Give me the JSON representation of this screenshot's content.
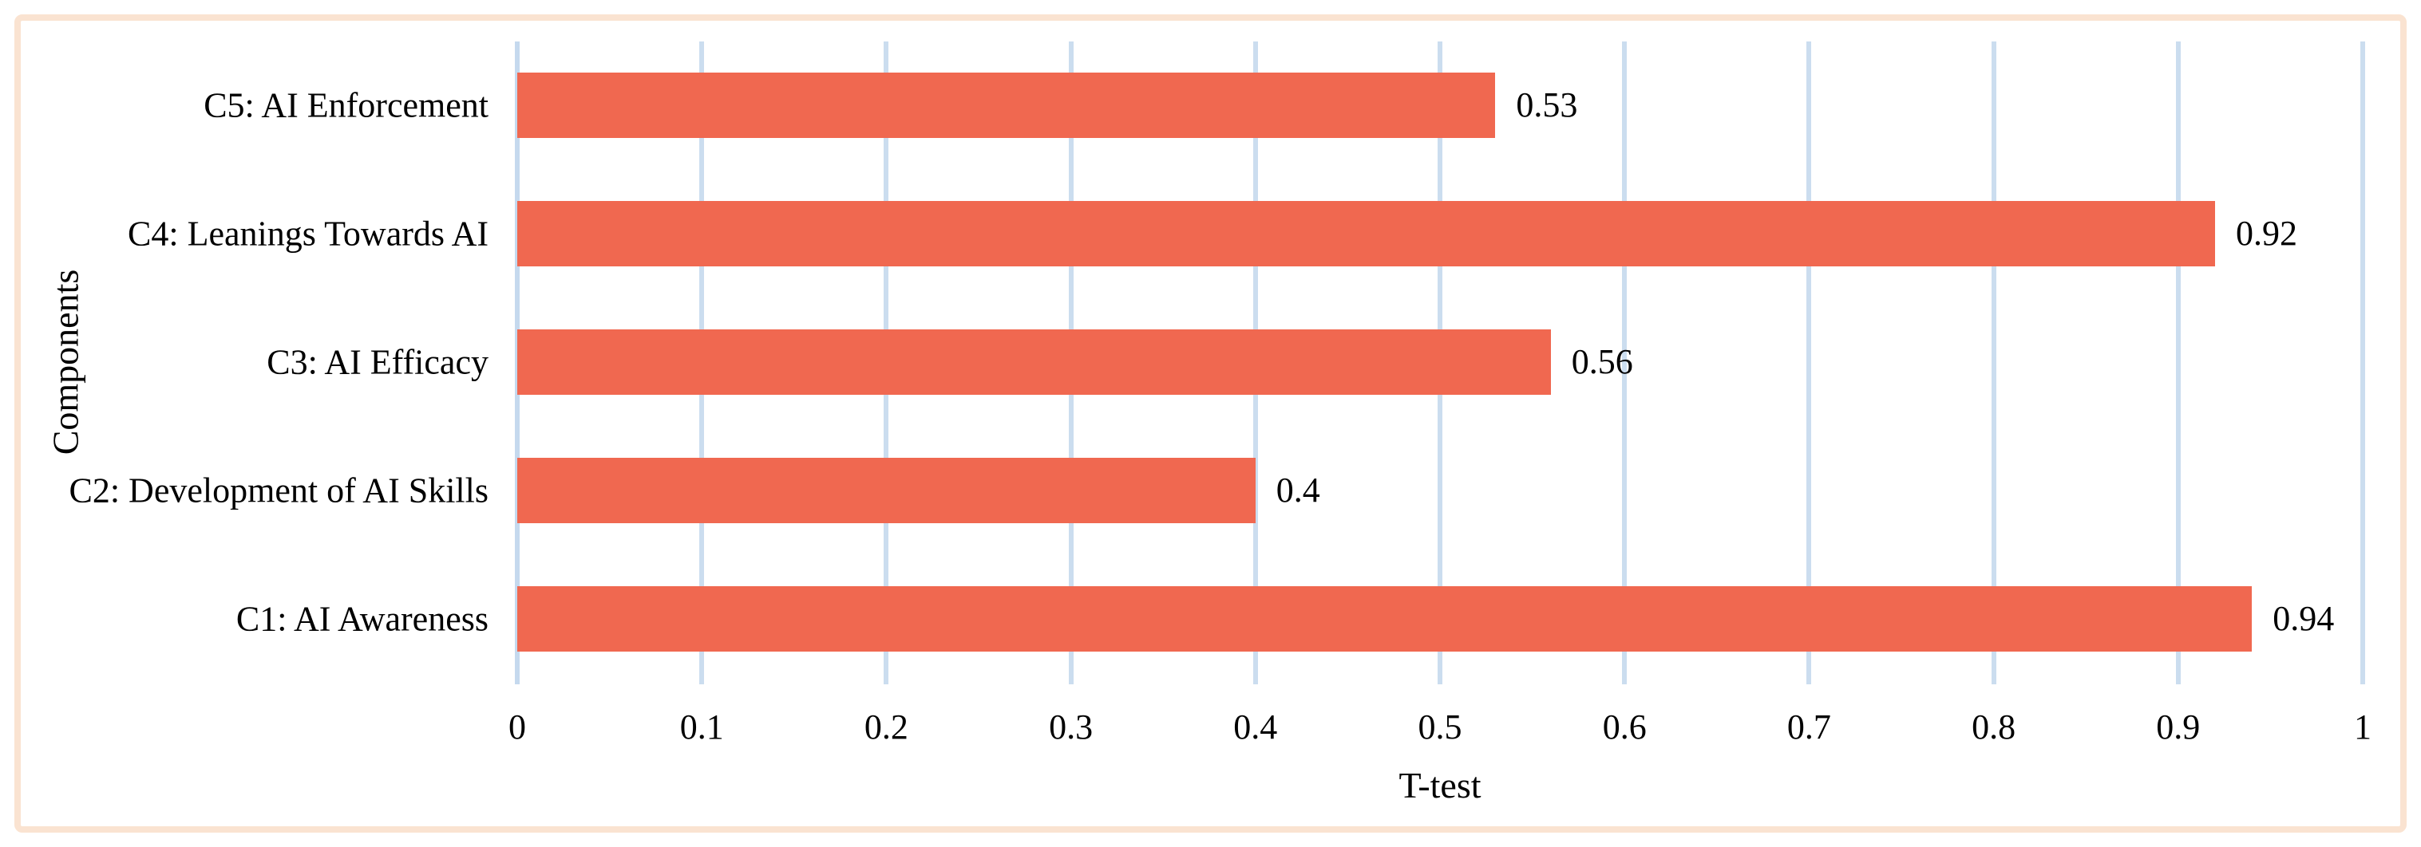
{
  "chart_data": {
    "type": "bar",
    "orientation": "horizontal",
    "title": "",
    "xlabel": "T-test",
    "ylabel": "Components",
    "row_order": "top_to_bottom",
    "categories": [
      "C5: AI Enforcement",
      "C4: Leanings Towards AI",
      "C3: AI Efficacy",
      "C2: Development of AI Skills",
      "C1: AI Awareness"
    ],
    "values": [
      0.53,
      0.92,
      0.56,
      0.4,
      0.94
    ],
    "data_labels": [
      "0.53",
      "0.92",
      "0.56",
      "0.4",
      "0.94"
    ],
    "xlim": [
      0,
      1
    ],
    "xtick_labels": [
      "0",
      "0.1",
      "0.2",
      "0.3",
      "0.4",
      "0.5",
      "0.6",
      "0.7",
      "0.8",
      "0.9",
      "1"
    ],
    "grid": "vertical-major-gridlines",
    "legend": "none",
    "colors": {
      "bar": "#F06850",
      "gridline": "#CBDDEF",
      "frame_border": "#FAE3D1",
      "text": "#000000",
      "background": "#FFFFFF"
    }
  }
}
